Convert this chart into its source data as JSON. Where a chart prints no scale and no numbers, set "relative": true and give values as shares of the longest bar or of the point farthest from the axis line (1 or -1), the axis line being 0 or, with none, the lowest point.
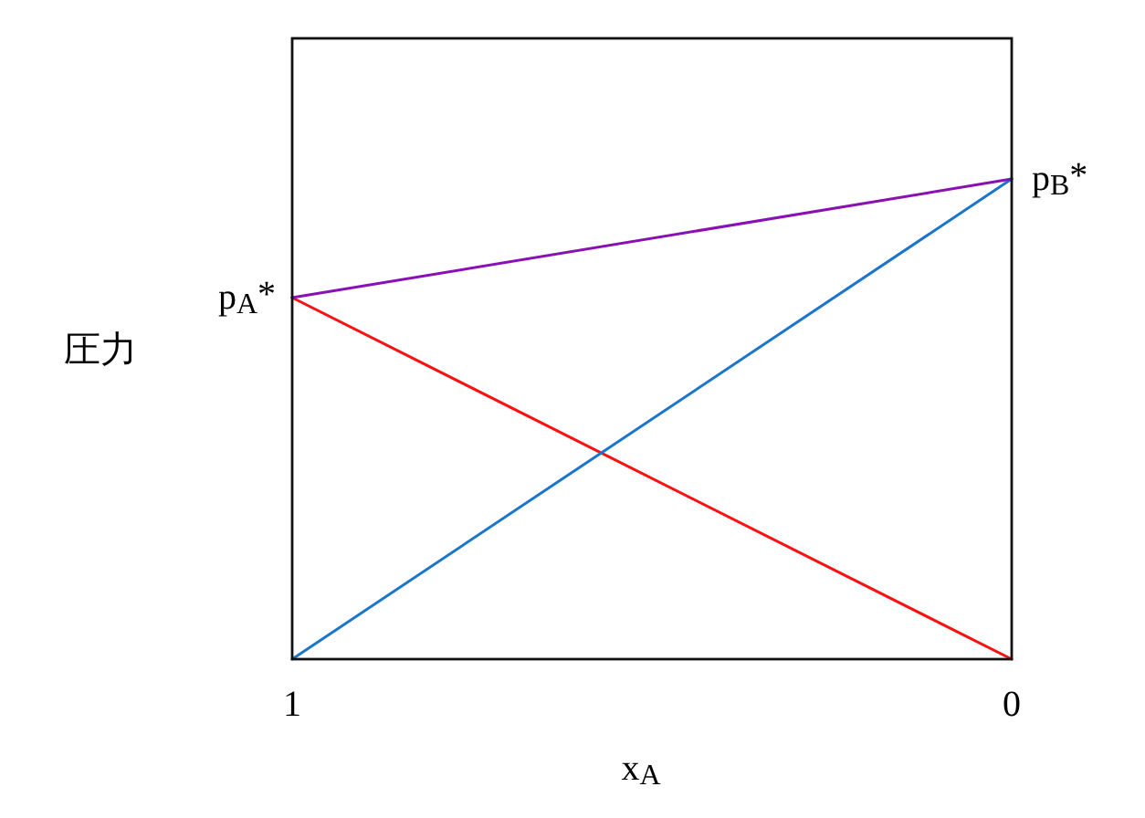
{
  "chart_data": {
    "type": "line",
    "xlabel": "x$_{A}$",
    "ylabel": "圧力",
    "x": [
      1,
      0
    ],
    "xlim": [
      1,
      0
    ],
    "xticks": [
      1,
      0
    ],
    "relative": true,
    "series": [
      {
        "color": "#ff1010",
        "values": [
          0.753,
          0
        ]
      },
      {
        "color": "#1a75cf",
        "values": [
          0,
          1
        ]
      },
      {
        "color": "#8a10b5",
        "values": [
          0.753,
          1
        ]
      }
    ],
    "annotations": [
      {
        "text": "p$_{A}$*",
        "x": 1,
        "y": 0.753
      },
      {
        "text": "p$_{B}$*",
        "x": 0,
        "y": 1
      }
    ]
  }
}
